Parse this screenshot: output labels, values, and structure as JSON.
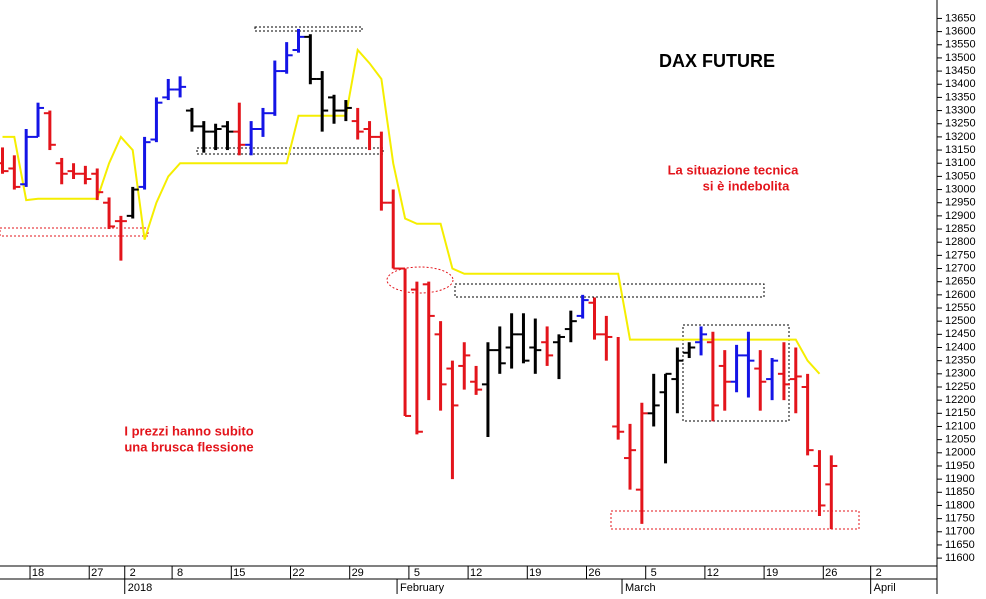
{
  "chart_data": {
    "type": "ohlc",
    "title": "DAX FUTURE",
    "annotations": [
      "La situazione tecnica",
      "si è indebolita",
      "I prezzi hanno subito",
      "una brusca flessione"
    ],
    "categories": [
      null,
      null,
      null,
      "18",
      null,
      null,
      null,
      null,
      "27",
      null,
      null,
      "2",
      null,
      null,
      null,
      "8",
      null,
      null,
      null,
      null,
      "15",
      null,
      null,
      null,
      null,
      "22",
      null,
      null,
      null,
      null,
      "29",
      null,
      null,
      null,
      null,
      "5",
      null,
      null,
      null,
      null,
      "12",
      null,
      null,
      null,
      null,
      "19",
      null,
      null,
      null,
      null,
      "26",
      null,
      null,
      null,
      null,
      "5",
      null,
      null,
      null,
      null,
      "12",
      null,
      null,
      null,
      null,
      "19",
      null,
      null,
      null,
      null,
      "26",
      null,
      null,
      null,
      "2"
    ],
    "period_categories": [
      null,
      null,
      null,
      null,
      null,
      null,
      null,
      null,
      null,
      null,
      null,
      "2018",
      null,
      null,
      null,
      null,
      null,
      null,
      null,
      null,
      null,
      null,
      null,
      null,
      null,
      null,
      null,
      null,
      null,
      null,
      null,
      null,
      null,
      null,
      "February",
      null,
      null,
      null,
      null,
      null,
      null,
      null,
      null,
      null,
      null,
      null,
      null,
      null,
      null,
      null,
      null,
      null,
      null,
      "March",
      null,
      null,
      null,
      null,
      null,
      null,
      null,
      null,
      null,
      null,
      null,
      null,
      null,
      null,
      null,
      null,
      null,
      null,
      null,
      null,
      "April"
    ],
    "open": [
      13100,
      13080,
      13020,
      13200,
      13290,
      13100,
      13070,
      13060,
      13060,
      12950,
      12880,
      12900,
      13010,
      13190,
      13350,
      13380,
      13300,
      13240,
      13220,
      13240,
      13220,
      13170,
      13230,
      13290,
      13450,
      13530,
      13580,
      13420,
      13350,
      13300,
      13260,
      13230,
      13200,
      12950,
      12700,
      12620,
      12640,
      12450,
      12320,
      12330,
      12270,
      12260,
      12390,
      12400,
      12450,
      12400,
      12420,
      12420,
      12470,
      12520,
      12570,
      12450,
      12100,
      11980,
      11860,
      12150,
      12230,
      12280,
      12380,
      12420,
      12420,
      12330,
      12270,
      12370,
      12320,
      12280,
      12300,
      12280,
      12250,
      11950,
      11880,
      null,
      null,
      null,
      null
    ],
    "high": [
      13160,
      13130,
      13230,
      13330,
      13300,
      13120,
      13100,
      13090,
      13080,
      12970,
      12900,
      13010,
      13200,
      13350,
      13420,
      13430,
      13310,
      13260,
      13250,
      13260,
      13330,
      13260,
      13310,
      13490,
      13560,
      13610,
      13590,
      13450,
      13360,
      13340,
      13310,
      13260,
      13220,
      13000,
      12700,
      12650,
      12650,
      12500,
      12350,
      12420,
      12330,
      12420,
      12480,
      12530,
      12530,
      12510,
      12480,
      12450,
      12540,
      12600,
      12590,
      12520,
      12440,
      12110,
      12190,
      12300,
      12300,
      12400,
      12420,
      12480,
      12460,
      12390,
      12410,
      12460,
      12390,
      12360,
      12420,
      12400,
      12300,
      12010,
      11990,
      null,
      null,
      null,
      null
    ],
    "low": [
      13060,
      13000,
      13010,
      13200,
      13150,
      13020,
      13040,
      13020,
      12960,
      12850,
      12730,
      12890,
      13000,
      13180,
      13340,
      13350,
      13220,
      13140,
      13150,
      13150,
      13130,
      13130,
      13200,
      13280,
      13440,
      13520,
      13400,
      13220,
      13250,
      13260,
      13190,
      13150,
      12920,
      12700,
      12140,
      12070,
      12200,
      12160,
      11900,
      12240,
      12220,
      12060,
      12300,
      12320,
      12340,
      12300,
      12330,
      12280,
      12420,
      12510,
      12430,
      12350,
      12050,
      11860,
      11730,
      12100,
      11960,
      12150,
      12360,
      12370,
      12120,
      12160,
      12230,
      12210,
      12160,
      12200,
      12200,
      12150,
      11990,
      11760,
      11710,
      null,
      null,
      null,
      null
    ],
    "close": [
      13070,
      13010,
      13200,
      13310,
      13170,
      13060,
      13060,
      13040,
      12990,
      12860,
      12880,
      13000,
      13180,
      13330,
      13380,
      13390,
      13240,
      13220,
      13230,
      13220,
      13170,
      13230,
      13290,
      13450,
      13510,
      13580,
      13420,
      13300,
      13300,
      13310,
      13220,
      13200,
      12950,
      12700,
      12140,
      12080,
      12520,
      12260,
      12180,
      12370,
      12240,
      12390,
      12340,
      12450,
      12350,
      12390,
      12370,
      12440,
      12500,
      12580,
      12450,
      12440,
      12080,
      12010,
      12150,
      12180,
      12300,
      12350,
      12400,
      12450,
      12180,
      12270,
      12370,
      12350,
      12270,
      12350,
      12260,
      12290,
      12010,
      11800,
      11950,
      null,
      null,
      null,
      null
    ],
    "bar_colors": [
      "#e3141b",
      "#e3141b",
      "#1414e6",
      "#1414e6",
      "#e3141b",
      "#e3141b",
      "#e3141b",
      "#e3141b",
      "#e3141b",
      "#e3141b",
      "#e3141b",
      "#000000",
      "#1414e6",
      "#1414e6",
      "#1414e6",
      "#1414e6",
      "#000000",
      "#000000",
      "#000000",
      "#000000",
      "#e3141b",
      "#1414e6",
      "#1414e6",
      "#1414e6",
      "#1414e6",
      "#1414e6",
      "#000000",
      "#000000",
      "#000000",
      "#000000",
      "#e3141b",
      "#e3141b",
      "#e3141b",
      "#e3141b",
      "#e3141b",
      "#e3141b",
      "#e3141b",
      "#e3141b",
      "#e3141b",
      "#e3141b",
      "#e3141b",
      "#000000",
      "#000000",
      "#000000",
      "#000000",
      "#000000",
      "#e3141b",
      "#000000",
      "#000000",
      "#1414e6",
      "#e3141b",
      "#e3141b",
      "#e3141b",
      "#e3141b",
      "#e3141b",
      "#000000",
      "#000000",
      "#000000",
      "#000000",
      "#1414e6",
      "#e3141b",
      "#e3141b",
      "#1414e6",
      "#1414e6",
      "#e3141b",
      "#1414e6",
      "#e3141b",
      "#e3141b",
      "#e3141b",
      "#e3141b",
      "#e3141b",
      null,
      null,
      null,
      null
    ],
    "line": {
      "color": "#f5ee00",
      "values": [
        13200,
        13200,
        12960,
        12965,
        12965,
        12965,
        12965,
        12965,
        12965,
        13100,
        13200,
        13150,
        12810,
        12950,
        13050,
        13100,
        13100,
        13100,
        13100,
        13100,
        13100,
        13100,
        13100,
        13100,
        13100,
        13280,
        13280,
        13280,
        13280,
        13280,
        13530,
        13480,
        13420,
        13100,
        12890,
        12870,
        12870,
        12870,
        12700,
        12680,
        12680,
        12680,
        12680,
        12680,
        12680,
        12680,
        12680,
        12680,
        12680,
        12680,
        12680,
        12680,
        12680,
        12430,
        12430,
        12430,
        12430,
        12430,
        12430,
        12430,
        12430,
        12430,
        12430,
        12430,
        12430,
        12430,
        12430,
        12430,
        12350,
        12300,
        null,
        null,
        null,
        null,
        null
      ]
    },
    "ylim": [
      11570,
      13720
    ],
    "yticks": [
      11600,
      11650,
      11700,
      11750,
      11800,
      11850,
      11900,
      11950,
      12000,
      12050,
      12100,
      12150,
      12200,
      12250,
      12300,
      12350,
      12400,
      12450,
      12500,
      12550,
      12600,
      12650,
      12700,
      12750,
      12800,
      12850,
      12900,
      12950,
      13000,
      13050,
      13100,
      13150,
      13200,
      13250,
      13300,
      13350,
      13400,
      13450,
      13500,
      13550,
      13600,
      13650
    ]
  }
}
